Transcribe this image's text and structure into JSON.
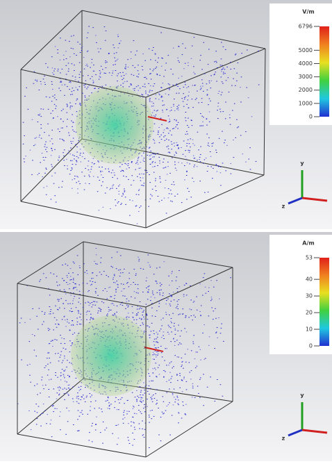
{
  "panels": [
    {
      "legend": {
        "unit": "V/m",
        "ticks": [
          6796,
          5000,
          4000,
          3000,
          2000,
          1000,
          0
        ]
      },
      "axes": {
        "y": "y",
        "z": "z"
      }
    },
    {
      "legend": {
        "unit": "A/m",
        "ticks": [
          53,
          40,
          30,
          20,
          10,
          0
        ]
      },
      "axes": {
        "y": "y",
        "z": "z"
      }
    }
  ]
}
